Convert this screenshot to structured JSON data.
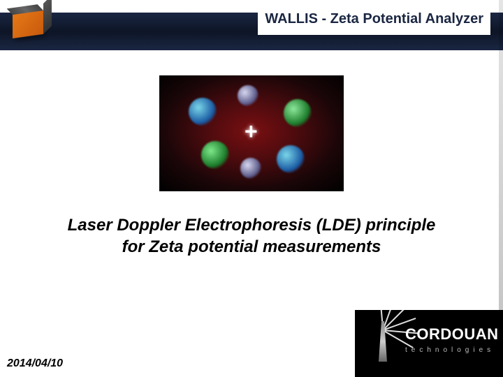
{
  "header": {
    "title": "WALLIS - Zeta Potential Analyzer",
    "bar_gradient_top": "#1a2642",
    "bar_gradient_mid": "#0d1526",
    "title_color": "#1a2642"
  },
  "device": {
    "body_color": "#e67817",
    "body_shade": "#c85a0d",
    "top_color": "#555555"
  },
  "illustration": {
    "bg_center": "#7a0f12",
    "bg_outer": "#000000",
    "symbol": "+",
    "clusters": [
      {
        "color_inner": "#7ad6e8",
        "color_outer": "#1a5aa3"
      },
      {
        "color_inner": "#7de88a",
        "color_outer": "#1a7a2a"
      },
      {
        "color_inner": "#8de89a",
        "color_outer": "#1a7a2a"
      },
      {
        "color_inner": "#7ad6e8",
        "color_outer": "#1a5aa3"
      },
      {
        "color_inner": "#d8d8f0",
        "color_outer": "#5a5a8a"
      },
      {
        "color_inner": "#d8d8f0",
        "color_outer": "#5a5a8a"
      }
    ]
  },
  "main": {
    "line1": "Laser Doppler Electrophoresis (LDE) principle",
    "line2": "for Zeta potential measurements",
    "font_size_pt": 18,
    "font_style": "italic bold",
    "color": "#000000"
  },
  "footer": {
    "date": "2014/04/10",
    "logo_brand": "CORDOUAN",
    "logo_tag": "technologies",
    "logo_bg": "#000000",
    "logo_text_color": "#ffffff"
  }
}
